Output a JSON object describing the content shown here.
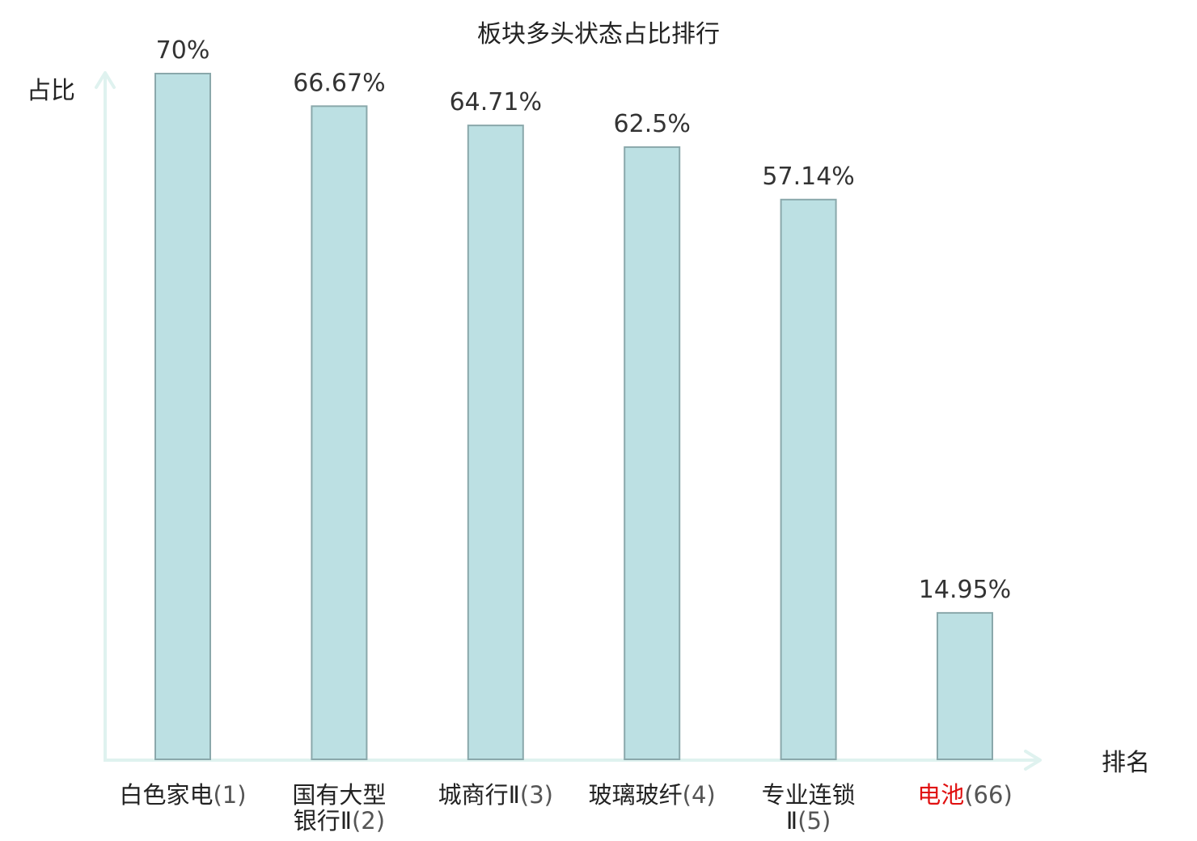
{
  "chart_data": {
    "type": "bar",
    "title": "板块多头状态占比排行",
    "ylabel": "占比",
    "xlabel": "排名",
    "ylim": [
      0,
      70
    ],
    "grid": false,
    "legend": "none",
    "categories": [
      {
        "lines": [
          {
            "name": "白色家电",
            "rank": "(1)"
          }
        ]
      },
      {
        "lines": [
          {
            "name": "国有大型",
            "rank": ""
          },
          {
            "name": "银行Ⅱ",
            "rank": "(2)"
          }
        ]
      },
      {
        "lines": [
          {
            "name": "城商行Ⅱ",
            "rank": "(3)"
          }
        ]
      },
      {
        "lines": [
          {
            "name": "玻璃玻纤",
            "rank": "(4)"
          }
        ]
      },
      {
        "lines": [
          {
            "name": "专业连锁",
            "rank": ""
          },
          {
            "name": "Ⅱ",
            "rank": "(5)"
          }
        ]
      },
      {
        "lines": [
          {
            "name": "电池",
            "rank": "(66)"
          }
        ],
        "highlight": true
      }
    ],
    "values": [
      70,
      66.67,
      64.71,
      62.5,
      57.14,
      14.95
    ],
    "value_labels": [
      "70%",
      "66.67%",
      "64.71%",
      "62.5%",
      "57.14%",
      "14.95%"
    ],
    "colors": {
      "bar_fill": "#bce0e3",
      "bar_stroke": "#8aa8ab",
      "axis": "#dff2ef",
      "highlight_text": "#e01010"
    }
  }
}
